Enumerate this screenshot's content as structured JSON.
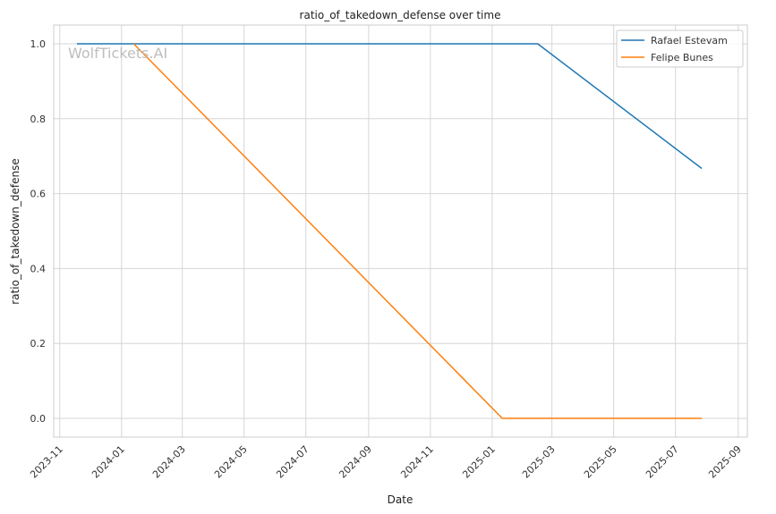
{
  "chart_data": {
    "type": "line",
    "title": "ratio_of_takedown_defense over time",
    "xlabel": "Date",
    "ylabel": "ratio_of_takedown_defense",
    "watermark": "WolfTickets.AI",
    "grid": true,
    "legend_position": "top-right",
    "x_ticks": [
      "2023-11",
      "2024-01",
      "2024-03",
      "2024-05",
      "2024-07",
      "2024-09",
      "2024-11",
      "2025-01",
      "2025-03",
      "2025-05",
      "2025-07",
      "2025-09"
    ],
    "y_ticks": [
      "0.0",
      "0.2",
      "0.4",
      "0.6",
      "0.8",
      "1.0"
    ],
    "xlim": [
      "2023-10-26",
      "2025-09-10"
    ],
    "ylim": [
      -0.05,
      1.05
    ],
    "series": [
      {
        "name": "Rafael Estevam",
        "color": "#1f77b4",
        "points": [
          {
            "x": "2023-11-18",
            "y": 1.0
          },
          {
            "x": "2025-02-15",
            "y": 1.0
          },
          {
            "x": "2025-07-27",
            "y": 0.667
          }
        ]
      },
      {
        "name": "Felipe Bunes",
        "color": "#ff7f0e",
        "points": [
          {
            "x": "2024-01-13",
            "y": 1.0
          },
          {
            "x": "2025-01-11",
            "y": 0.0
          },
          {
            "x": "2025-07-27",
            "y": 0.0
          }
        ]
      }
    ]
  }
}
